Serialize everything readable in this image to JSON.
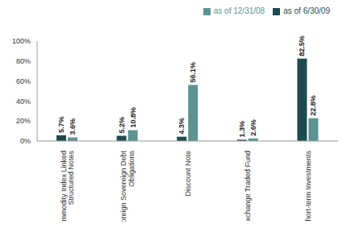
{
  "chart_data": {
    "type": "bar",
    "categories": [
      "Commodity Index Linked Structured Notes",
      "Foreign Sovereign Debt Obligations",
      "Discount Note",
      "Exchange Traded Fund",
      "Short-term Investments"
    ],
    "series": [
      {
        "name": "as of 6/30/09",
        "color": "#1d4c4f",
        "values": [
          5.7,
          5.2,
          4.3,
          1.3,
          82.5
        ],
        "value_labels": [
          "5.7%",
          "5.2%",
          "4.3%",
          "1.3%",
          "82.5%"
        ]
      },
      {
        "name": "as of 12/31/08",
        "color": "#5d9391",
        "values": [
          3.6,
          10.8,
          56.1,
          2.6,
          22.8
        ],
        "value_labels": [
          "3.6%",
          "10.8%",
          "56.1%",
          "2.6%",
          "22.8%"
        ]
      }
    ],
    "ylim": [
      0,
      100
    ],
    "yticks": [
      {
        "value": 0,
        "label": "0%"
      },
      {
        "value": 20,
        "label": "20%"
      },
      {
        "value": 40,
        "label": "40%"
      },
      {
        "value": 60,
        "label": "60%"
      },
      {
        "value": 80,
        "label": "80%"
      },
      {
        "value": 100,
        "label": "100%"
      }
    ],
    "grid": false,
    "legend": "top-right",
    "data_labels": true
  }
}
